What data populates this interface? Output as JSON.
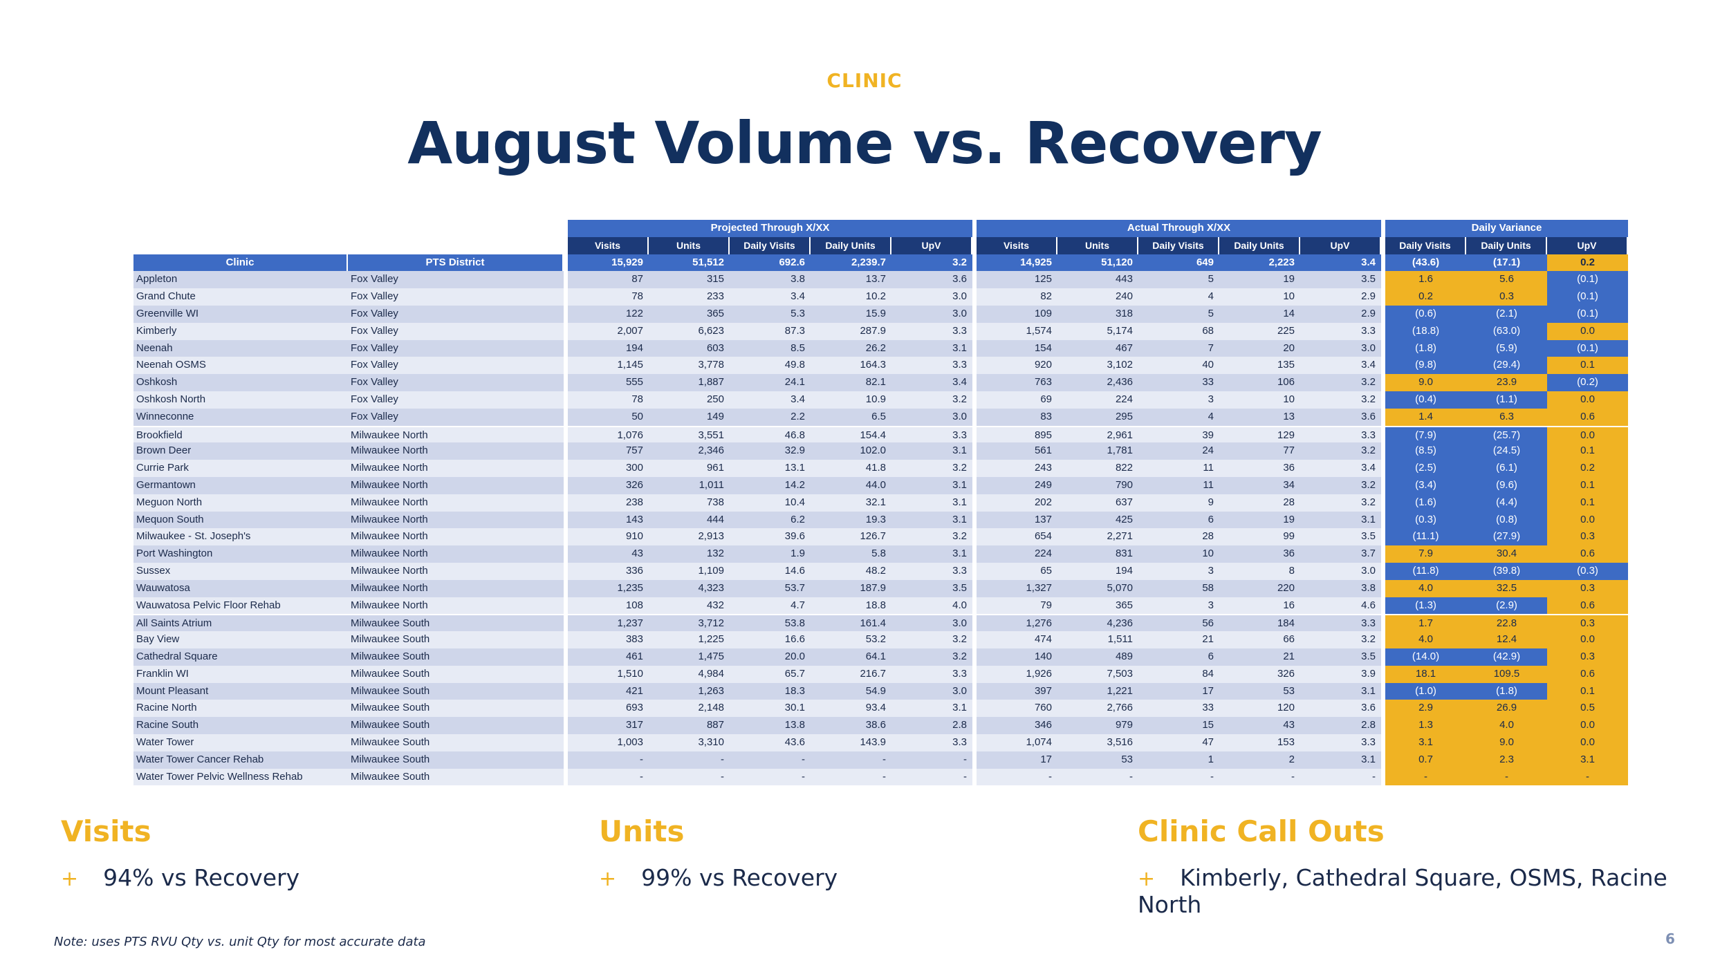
{
  "header": {
    "eyebrow": "CLINIC",
    "title": "August Volume vs. Recovery"
  },
  "table": {
    "groups": [
      "Projected Through X/XX",
      "Actual Through X/XX",
      "Daily Variance"
    ],
    "projected_cols": [
      "Visits",
      "Units",
      "Daily Visits",
      "Daily Units",
      "UpV"
    ],
    "actual_cols": [
      "Visits",
      "Units",
      "Daily Visits",
      "Daily Units",
      "UpV"
    ],
    "variance_cols": [
      "Daily Visits",
      "Daily Units",
      "UpV"
    ],
    "col_clinic": "Clinic",
    "col_district": "PTS District",
    "totals": {
      "projected": [
        "15,929",
        "51,512",
        "692.6",
        "2,239.7",
        "3.2"
      ],
      "actual": [
        "14,925",
        "51,120",
        "649",
        "2,223",
        "3.4"
      ],
      "variance": [
        "(43.6)",
        "(17.1)",
        "0.2"
      ],
      "variance_colors": [
        "b",
        "b",
        "y"
      ]
    },
    "rows": [
      {
        "clinic": "Appleton",
        "district": "Fox Valley",
        "p": [
          "87",
          "315",
          "3.8",
          "13.7",
          "3.6"
        ],
        "a": [
          "125",
          "443",
          "5",
          "19",
          "3.5"
        ],
        "v": [
          "1.6",
          "5.6",
          "(0.1)"
        ],
        "vc": [
          "y",
          "y",
          "b"
        ]
      },
      {
        "clinic": "Grand Chute",
        "district": "Fox Valley",
        "p": [
          "78",
          "233",
          "3.4",
          "10.2",
          "3.0"
        ],
        "a": [
          "82",
          "240",
          "4",
          "10",
          "2.9"
        ],
        "v": [
          "0.2",
          "0.3",
          "(0.1)"
        ],
        "vc": [
          "y",
          "y",
          "b"
        ]
      },
      {
        "clinic": "Greenville WI",
        "district": "Fox Valley",
        "p": [
          "122",
          "365",
          "5.3",
          "15.9",
          "3.0"
        ],
        "a": [
          "109",
          "318",
          "5",
          "14",
          "2.9"
        ],
        "v": [
          "(0.6)",
          "(2.1)",
          "(0.1)"
        ],
        "vc": [
          "b",
          "b",
          "b"
        ]
      },
      {
        "clinic": "Kimberly",
        "district": "Fox Valley",
        "p": [
          "2,007",
          "6,623",
          "87.3",
          "287.9",
          "3.3"
        ],
        "a": [
          "1,574",
          "5,174",
          "68",
          "225",
          "3.3"
        ],
        "v": [
          "(18.8)",
          "(63.0)",
          "0.0"
        ],
        "vc": [
          "b",
          "b",
          "y"
        ]
      },
      {
        "clinic": "Neenah",
        "district": "Fox Valley",
        "p": [
          "194",
          "603",
          "8.5",
          "26.2",
          "3.1"
        ],
        "a": [
          "154",
          "467",
          "7",
          "20",
          "3.0"
        ],
        "v": [
          "(1.8)",
          "(5.9)",
          "(0.1)"
        ],
        "vc": [
          "b",
          "b",
          "b"
        ]
      },
      {
        "clinic": "Neenah OSMS",
        "district": "Fox Valley",
        "p": [
          "1,145",
          "3,778",
          "49.8",
          "164.3",
          "3.3"
        ],
        "a": [
          "920",
          "3,102",
          "40",
          "135",
          "3.4"
        ],
        "v": [
          "(9.8)",
          "(29.4)",
          "0.1"
        ],
        "vc": [
          "b",
          "b",
          "y"
        ]
      },
      {
        "clinic": "Oshkosh",
        "district": "Fox Valley",
        "p": [
          "555",
          "1,887",
          "24.1",
          "82.1",
          "3.4"
        ],
        "a": [
          "763",
          "2,436",
          "33",
          "106",
          "3.2"
        ],
        "v": [
          "9.0",
          "23.9",
          "(0.2)"
        ],
        "vc": [
          "y",
          "y",
          "b"
        ]
      },
      {
        "clinic": "Oshkosh North",
        "district": "Fox Valley",
        "p": [
          "78",
          "250",
          "3.4",
          "10.9",
          "3.2"
        ],
        "a": [
          "69",
          "224",
          "3",
          "10",
          "3.2"
        ],
        "v": [
          "(0.4)",
          "(1.1)",
          "0.0"
        ],
        "vc": [
          "b",
          "b",
          "y"
        ]
      },
      {
        "clinic": "Winneconne",
        "district": "Fox Valley",
        "p": [
          "50",
          "149",
          "2.2",
          "6.5",
          "3.0"
        ],
        "a": [
          "83",
          "295",
          "4",
          "13",
          "3.6"
        ],
        "v": [
          "1.4",
          "6.3",
          "0.6"
        ],
        "vc": [
          "y",
          "y",
          "y"
        ]
      },
      {
        "clinic": "Brookfield",
        "district": "Milwaukee North",
        "p": [
          "1,076",
          "3,551",
          "46.8",
          "154.4",
          "3.3"
        ],
        "a": [
          "895",
          "2,961",
          "39",
          "129",
          "3.3"
        ],
        "v": [
          "(7.9)",
          "(25.7)",
          "0.0"
        ],
        "vc": [
          "b",
          "b",
          "y"
        ],
        "sep": true
      },
      {
        "clinic": "Brown Deer",
        "district": "Milwaukee North",
        "p": [
          "757",
          "2,346",
          "32.9",
          "102.0",
          "3.1"
        ],
        "a": [
          "561",
          "1,781",
          "24",
          "77",
          "3.2"
        ],
        "v": [
          "(8.5)",
          "(24.5)",
          "0.1"
        ],
        "vc": [
          "b",
          "b",
          "y"
        ]
      },
      {
        "clinic": "Currie Park",
        "district": "Milwaukee North",
        "p": [
          "300",
          "961",
          "13.1",
          "41.8",
          "3.2"
        ],
        "a": [
          "243",
          "822",
          "11",
          "36",
          "3.4"
        ],
        "v": [
          "(2.5)",
          "(6.1)",
          "0.2"
        ],
        "vc": [
          "b",
          "b",
          "y"
        ]
      },
      {
        "clinic": "Germantown",
        "district": "Milwaukee North",
        "p": [
          "326",
          "1,011",
          "14.2",
          "44.0",
          "3.1"
        ],
        "a": [
          "249",
          "790",
          "11",
          "34",
          "3.2"
        ],
        "v": [
          "(3.4)",
          "(9.6)",
          "0.1"
        ],
        "vc": [
          "b",
          "b",
          "y"
        ]
      },
      {
        "clinic": "Meguon North",
        "district": "Milwaukee North",
        "p": [
          "238",
          "738",
          "10.4",
          "32.1",
          "3.1"
        ],
        "a": [
          "202",
          "637",
          "9",
          "28",
          "3.2"
        ],
        "v": [
          "(1.6)",
          "(4.4)",
          "0.1"
        ],
        "vc": [
          "b",
          "b",
          "y"
        ]
      },
      {
        "clinic": "Mequon South",
        "district": "Milwaukee North",
        "p": [
          "143",
          "444",
          "6.2",
          "19.3",
          "3.1"
        ],
        "a": [
          "137",
          "425",
          "6",
          "19",
          "3.1"
        ],
        "v": [
          "(0.3)",
          "(0.8)",
          "0.0"
        ],
        "vc": [
          "b",
          "b",
          "y"
        ]
      },
      {
        "clinic": "Milwaukee - St. Joseph's",
        "district": "Milwaukee North",
        "p": [
          "910",
          "2,913",
          "39.6",
          "126.7",
          "3.2"
        ],
        "a": [
          "654",
          "2,271",
          "28",
          "99",
          "3.5"
        ],
        "v": [
          "(11.1)",
          "(27.9)",
          "0.3"
        ],
        "vc": [
          "b",
          "b",
          "y"
        ]
      },
      {
        "clinic": "Port Washington",
        "district": "Milwaukee North",
        "p": [
          "43",
          "132",
          "1.9",
          "5.8",
          "3.1"
        ],
        "a": [
          "224",
          "831",
          "10",
          "36",
          "3.7"
        ],
        "v": [
          "7.9",
          "30.4",
          "0.6"
        ],
        "vc": [
          "y",
          "y",
          "y"
        ]
      },
      {
        "clinic": "Sussex",
        "district": "Milwaukee North",
        "p": [
          "336",
          "1,109",
          "14.6",
          "48.2",
          "3.3"
        ],
        "a": [
          "65",
          "194",
          "3",
          "8",
          "3.0"
        ],
        "v": [
          "(11.8)",
          "(39.8)",
          "(0.3)"
        ],
        "vc": [
          "b",
          "b",
          "b"
        ]
      },
      {
        "clinic": "Wauwatosa",
        "district": "Milwaukee North",
        "p": [
          "1,235",
          "4,323",
          "53.7",
          "187.9",
          "3.5"
        ],
        "a": [
          "1,327",
          "5,070",
          "58",
          "220",
          "3.8"
        ],
        "v": [
          "4.0",
          "32.5",
          "0.3"
        ],
        "vc": [
          "y",
          "y",
          "y"
        ]
      },
      {
        "clinic": "Wauwatosa Pelvic Floor Rehab",
        "district": "Milwaukee North",
        "p": [
          "108",
          "432",
          "4.7",
          "18.8",
          "4.0"
        ],
        "a": [
          "79",
          "365",
          "3",
          "16",
          "4.6"
        ],
        "v": [
          "(1.3)",
          "(2.9)",
          "0.6"
        ],
        "vc": [
          "b",
          "b",
          "y"
        ]
      },
      {
        "clinic": "All Saints Atrium",
        "district": "Milwaukee South",
        "p": [
          "1,237",
          "3,712",
          "53.8",
          "161.4",
          "3.0"
        ],
        "a": [
          "1,276",
          "4,236",
          "56",
          "184",
          "3.3"
        ],
        "v": [
          "1.7",
          "22.8",
          "0.3"
        ],
        "vc": [
          "y",
          "y",
          "y"
        ],
        "sep": true
      },
      {
        "clinic": "Bay View",
        "district": "Milwaukee South",
        "p": [
          "383",
          "1,225",
          "16.6",
          "53.2",
          "3.2"
        ],
        "a": [
          "474",
          "1,511",
          "21",
          "66",
          "3.2"
        ],
        "v": [
          "4.0",
          "12.4",
          "0.0"
        ],
        "vc": [
          "y",
          "y",
          "y"
        ]
      },
      {
        "clinic": "Cathedral Square",
        "district": "Milwaukee South",
        "p": [
          "461",
          "1,475",
          "20.0",
          "64.1",
          "3.2"
        ],
        "a": [
          "140",
          "489",
          "6",
          "21",
          "3.5"
        ],
        "v": [
          "(14.0)",
          "(42.9)",
          "0.3"
        ],
        "vc": [
          "b",
          "b",
          "y"
        ]
      },
      {
        "clinic": "Franklin WI",
        "district": "Milwaukee South",
        "p": [
          "1,510",
          "4,984",
          "65.7",
          "216.7",
          "3.3"
        ],
        "a": [
          "1,926",
          "7,503",
          "84",
          "326",
          "3.9"
        ],
        "v": [
          "18.1",
          "109.5",
          "0.6"
        ],
        "vc": [
          "y",
          "y",
          "y"
        ]
      },
      {
        "clinic": "Mount Pleasant",
        "district": "Milwaukee South",
        "p": [
          "421",
          "1,263",
          "18.3",
          "54.9",
          "3.0"
        ],
        "a": [
          "397",
          "1,221",
          "17",
          "53",
          "3.1"
        ],
        "v": [
          "(1.0)",
          "(1.8)",
          "0.1"
        ],
        "vc": [
          "b",
          "b",
          "y"
        ]
      },
      {
        "clinic": "Racine North",
        "district": "Milwaukee South",
        "p": [
          "693",
          "2,148",
          "30.1",
          "93.4",
          "3.1"
        ],
        "a": [
          "760",
          "2,766",
          "33",
          "120",
          "3.6"
        ],
        "v": [
          "2.9",
          "26.9",
          "0.5"
        ],
        "vc": [
          "y",
          "y",
          "y"
        ]
      },
      {
        "clinic": "Racine South",
        "district": "Milwaukee South",
        "p": [
          "317",
          "887",
          "13.8",
          "38.6",
          "2.8"
        ],
        "a": [
          "346",
          "979",
          "15",
          "43",
          "2.8"
        ],
        "v": [
          "1.3",
          "4.0",
          "0.0"
        ],
        "vc": [
          "y",
          "y",
          "y"
        ]
      },
      {
        "clinic": "Water Tower",
        "district": "Milwaukee South",
        "p": [
          "1,003",
          "3,310",
          "43.6",
          "143.9",
          "3.3"
        ],
        "a": [
          "1,074",
          "3,516",
          "47",
          "153",
          "3.3"
        ],
        "v": [
          "3.1",
          "9.0",
          "0.0"
        ],
        "vc": [
          "y",
          "y",
          "y"
        ]
      },
      {
        "clinic": "Water Tower Cancer Rehab",
        "district": "Milwaukee South",
        "p": [
          "-",
          "-",
          "-",
          "-",
          "-"
        ],
        "a": [
          "17",
          "53",
          "1",
          "2",
          "3.1"
        ],
        "v": [
          "0.7",
          "2.3",
          "3.1"
        ],
        "vc": [
          "y",
          "y",
          "y"
        ]
      },
      {
        "clinic": "Water Tower Pelvic Wellness Rehab",
        "district": "Milwaukee South",
        "p": [
          "-",
          "-",
          "-",
          "-",
          "-"
        ],
        "a": [
          "-",
          "-",
          "-",
          "-",
          "-"
        ],
        "v": [
          "-",
          "-",
          "-"
        ],
        "vc": [
          "y",
          "y",
          "y"
        ]
      }
    ]
  },
  "callouts": [
    {
      "heading": "Visits",
      "bullet": "94% vs Recovery"
    },
    {
      "heading": "Units",
      "bullet": "99% vs Recovery"
    },
    {
      "heading": "Clinic Call Outs",
      "bullet": "Kimberly, Cathedral Square, OSMS, Racine North"
    }
  ],
  "bullet_symbol": "+",
  "footer": {
    "note": "Note: uses PTS RVU Qty vs. unit Qty for most accurate data",
    "page_number": "6"
  },
  "colors": {
    "navy": "#12305e",
    "accent": "#f0b323",
    "blue": "#3d6bc4",
    "dark_blue": "#1c3a78"
  }
}
